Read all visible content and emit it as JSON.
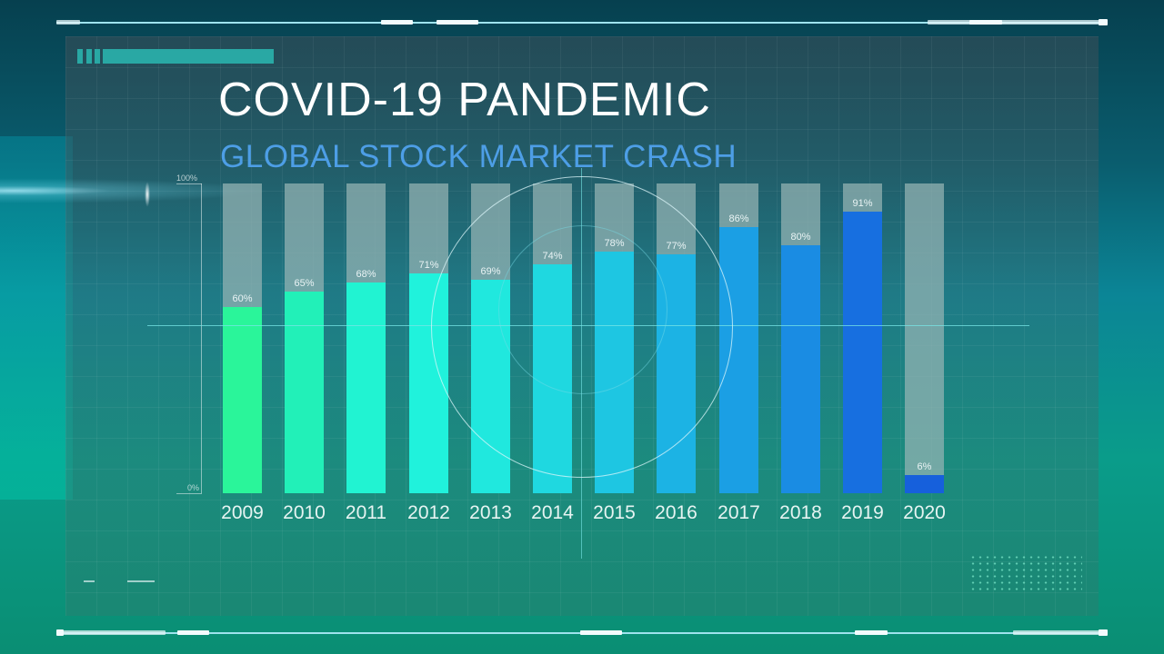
{
  "header": {
    "title": "COVID-19 PANDEMIC",
    "subtitle": "GLOBAL STOCK MARKET CRASH"
  },
  "axis": {
    "y_top_label": "100%",
    "y_bottom_label": "0%"
  },
  "colors": {
    "title": "#ffffff",
    "subtitle": "#4d9ee6",
    "bar_track": "#96b4b4",
    "accent": "#29a8a4"
  },
  "bars": [
    {
      "year": "2009",
      "value": 60,
      "label": "60%",
      "color": "#2af59a"
    },
    {
      "year": "2010",
      "value": 65,
      "label": "65%",
      "color": "#22f0b8"
    },
    {
      "year": "2011",
      "value": 68,
      "label": "68%",
      "color": "#21f3d2"
    },
    {
      "year": "2012",
      "value": 71,
      "label": "71%",
      "color": "#20f2dc"
    },
    {
      "year": "2013",
      "value": 69,
      "label": "69%",
      "color": "#20e8de"
    },
    {
      "year": "2014",
      "value": 74,
      "label": "74%",
      "color": "#1fd8e0"
    },
    {
      "year": "2015",
      "value": 78,
      "label": "78%",
      "color": "#1ec6e2"
    },
    {
      "year": "2016",
      "value": 77,
      "label": "77%",
      "color": "#1cb3e4"
    },
    {
      "year": "2017",
      "value": 86,
      "label": "86%",
      "color": "#1b9fe4"
    },
    {
      "year": "2018",
      "value": 80,
      "label": "80%",
      "color": "#1a8ce3"
    },
    {
      "year": "2019",
      "value": 91,
      "label": "91%",
      "color": "#176fe0"
    },
    {
      "year": "2020",
      "value": 6,
      "label": "6%",
      "color": "#1660dc"
    }
  ],
  "chart_data": {
    "type": "bar",
    "title": "COVID-19 PANDEMIC",
    "subtitle": "GLOBAL STOCK MARKET CRASH",
    "categories": [
      "2009",
      "2010",
      "2011",
      "2012",
      "2013",
      "2014",
      "2015",
      "2016",
      "2017",
      "2018",
      "2019",
      "2020"
    ],
    "values": [
      60,
      65,
      68,
      71,
      69,
      74,
      78,
      77,
      86,
      80,
      91,
      6
    ],
    "data_labels": [
      "60%",
      "65%",
      "68%",
      "71%",
      "69%",
      "74%",
      "78%",
      "77%",
      "86%",
      "80%",
      "91%",
      "6%"
    ],
    "xlabel": "",
    "ylabel": "",
    "ylim": [
      0,
      100
    ],
    "y_tick_labels": [
      "0%",
      "100%"
    ],
    "grid": true,
    "legend": null,
    "stacked_background_track": true
  }
}
